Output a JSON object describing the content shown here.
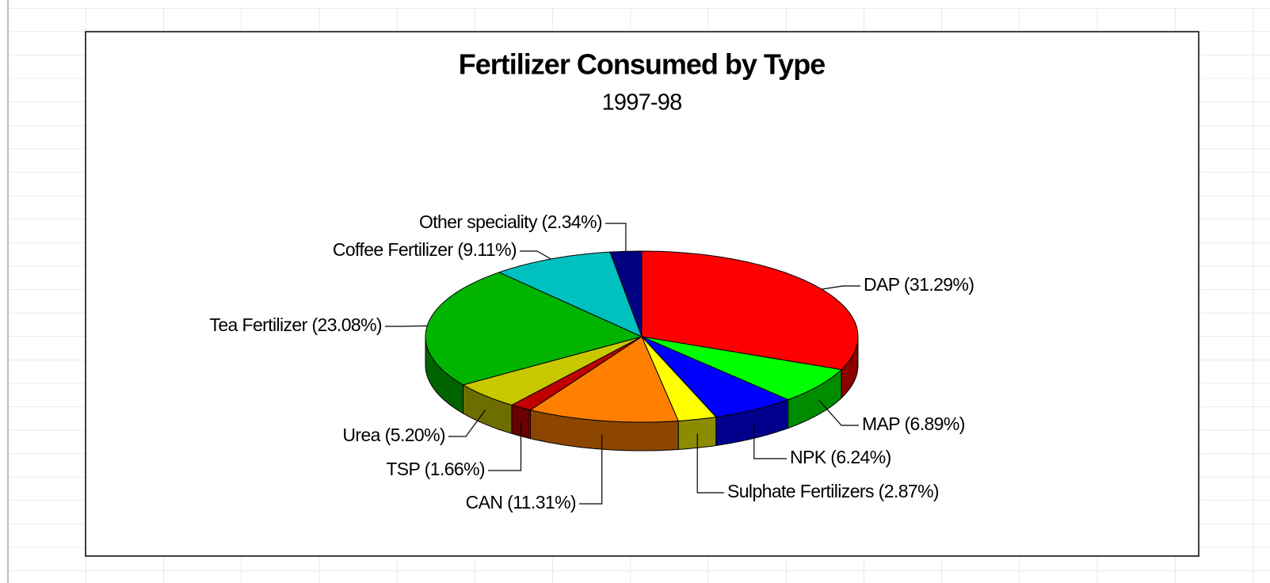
{
  "chart_data": {
    "type": "pie3d",
    "title": "Fertilizer Consumed by Type",
    "subtitle": "1997-98",
    "categories": [
      "DAP",
      "MAP",
      "NPK",
      "Sulphate Fertilizers",
      "CAN",
      "TSP",
      "Urea",
      "Tea Fertilizer",
      "Coffee Fertilizer",
      "Other speciality"
    ],
    "values": [
      31.29,
      6.89,
      6.24,
      2.87,
      11.31,
      1.66,
      5.2,
      23.08,
      9.11,
      2.34
    ],
    "value_labels": [
      "(31.29%)",
      "(6.89%)",
      "(6.24%)",
      "(2.87%)",
      "(11.31%)",
      "(1.66%)",
      "(5.20%)",
      "(23.08%)",
      "(9.11%)",
      "(2.34%)"
    ],
    "colors": [
      "#ff0000",
      "#00ff00",
      "#0000ff",
      "#ffff00",
      "#ff8000",
      "#c00000",
      "#c8c800",
      "#00b400",
      "#00c0c0",
      "#000080"
    ]
  }
}
